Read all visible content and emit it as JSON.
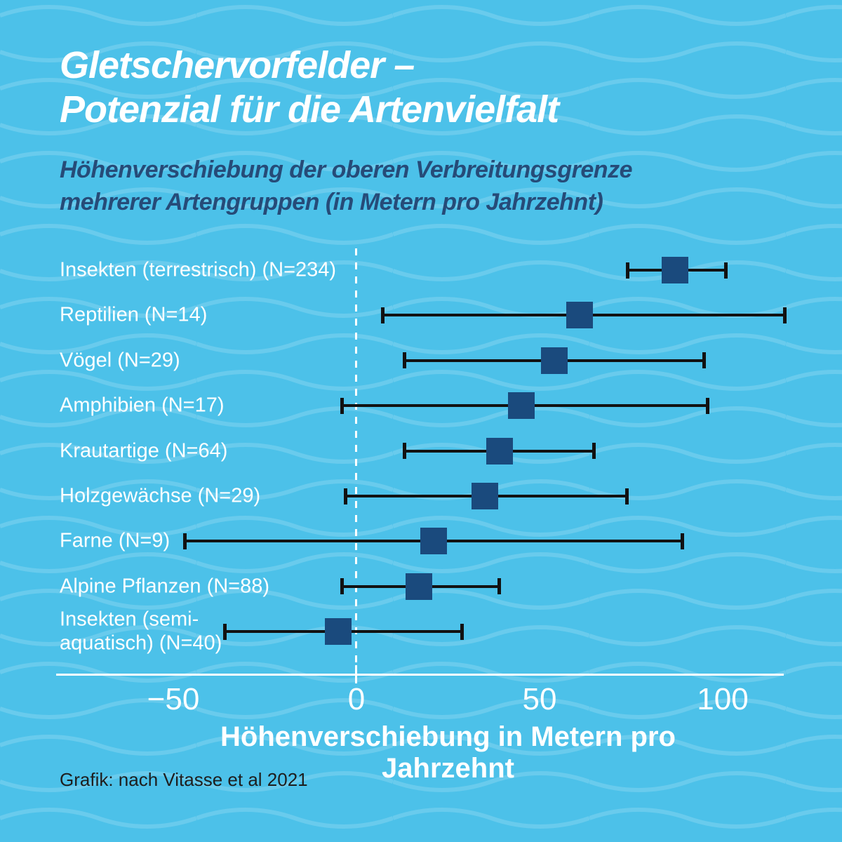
{
  "header": {
    "title_line1": "Gletschervorfelder –",
    "title_line2": "Potenzial für die Artenvielfalt",
    "subtitle_line1": "Höhenverschiebung der oberen Verbreitungsgrenze",
    "subtitle_line2": "mehrerer Artengruppen (in Metern pro Jahrzehnt)"
  },
  "chart_data": {
    "type": "scatter",
    "variant": "horizontal-dot-with-error-bars",
    "title": "Gletschervorfelder – Potenzial für die Artenvielfalt",
    "subtitle": "Höhenverschiebung der oberen Verbreitungsgrenze mehrerer Artengruppen (in Metern pro Jahrzehnt)",
    "xlabel": "Höhenverschiebung in Metern pro Jahrzehnt",
    "xlim": [
      -82,
      117
    ],
    "grid": false,
    "zero_line_style": "dashed-white-vertical",
    "xticks": [
      {
        "value": -50,
        "label": "−50"
      },
      {
        "value": 0,
        "label": "0"
      },
      {
        "value": 50,
        "label": "50"
      },
      {
        "value": 100,
        "label": "100"
      }
    ],
    "rows": [
      {
        "label": "Insekten (terrestrisch) (N=234)",
        "mean": 87,
        "ci_low": 74,
        "ci_high": 101
      },
      {
        "label": "Reptilien (N=14)",
        "mean": 61,
        "ci_low": 7,
        "ci_high": 117
      },
      {
        "label": "Vögel (N=29)",
        "mean": 54,
        "ci_low": 13,
        "ci_high": 95
      },
      {
        "label": "Amphibien (N=17)",
        "mean": 45,
        "ci_low": -4,
        "ci_high": 96
      },
      {
        "label": "Krautartige (N=64)",
        "mean": 39,
        "ci_low": 13,
        "ci_high": 65
      },
      {
        "label": "Holzgewächse (N=29)",
        "mean": 35,
        "ci_low": -3,
        "ci_high": 74
      },
      {
        "label": "Farne (N=9)",
        "mean": 21,
        "ci_low": -47,
        "ci_high": 89
      },
      {
        "label": "Alpine Pflanzen (N=88)",
        "mean": 17,
        "ci_low": -4,
        "ci_high": 39
      },
      {
        "label": "Insekten (semi-\naquatisch) (N=40)",
        "mean": -5,
        "ci_low": -36,
        "ci_high": 29
      }
    ]
  },
  "footer": {
    "credit": "Grafik: nach Vitasse et al 2021"
  },
  "colors": {
    "background": "#4CC1E9",
    "wave_stroke": "#FFFFFF",
    "marker": "#1A4A7D",
    "error_bar": "#121212",
    "title_text": "#FFFFFF",
    "subtitle_text": "#264B78",
    "axis_text": "#FFFFFF",
    "credit_text": "#1E1E1E"
  }
}
